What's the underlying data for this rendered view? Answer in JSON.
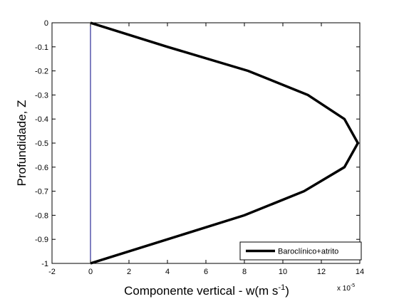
{
  "chart_data": {
    "type": "line",
    "xlabel": "Componente vertical - w(m s",
    "xlabel_sup": "-1",
    "xlabel_close": ")",
    "ylabel": "Profundidade, Z",
    "xlim": [
      -2,
      14
    ],
    "ylim": [
      -1,
      0
    ],
    "x_multiplier": "x 10",
    "x_multiplier_exp": "-5",
    "xticks": [
      -2,
      0,
      2,
      4,
      6,
      8,
      10,
      12,
      14
    ],
    "yticks": [
      0,
      -0.1,
      -0.2,
      -0.3,
      -0.4,
      -0.5,
      -0.6,
      -0.7,
      -0.8,
      -0.9,
      -1
    ],
    "xtick_labels": [
      "-2",
      "0",
      "2",
      "4",
      "6",
      "8",
      "10",
      "12",
      "14"
    ],
    "ytick_labels": [
      "0",
      "-0.1",
      "-0.2",
      "-0.3",
      "-0.4",
      "-0.5",
      "-0.6",
      "-0.7",
      "-0.8",
      "-0.9",
      "-1"
    ],
    "grid": false,
    "legend_position": "bottom-right",
    "series": [
      {
        "name": "Baroclínico+atrito",
        "color": "#000000",
        "x": [
          0,
          4.0,
          8.2,
          11.3,
          13.2,
          13.9,
          13.2,
          11.1,
          8.0,
          4.0,
          0
        ],
        "y": [
          0,
          -0.1,
          -0.2,
          -0.3,
          -0.4,
          -0.5,
          -0.6,
          -0.7,
          -0.8,
          -0.9,
          -1
        ]
      }
    ],
    "reference_line": {
      "x": 0,
      "color": "#000080"
    }
  }
}
